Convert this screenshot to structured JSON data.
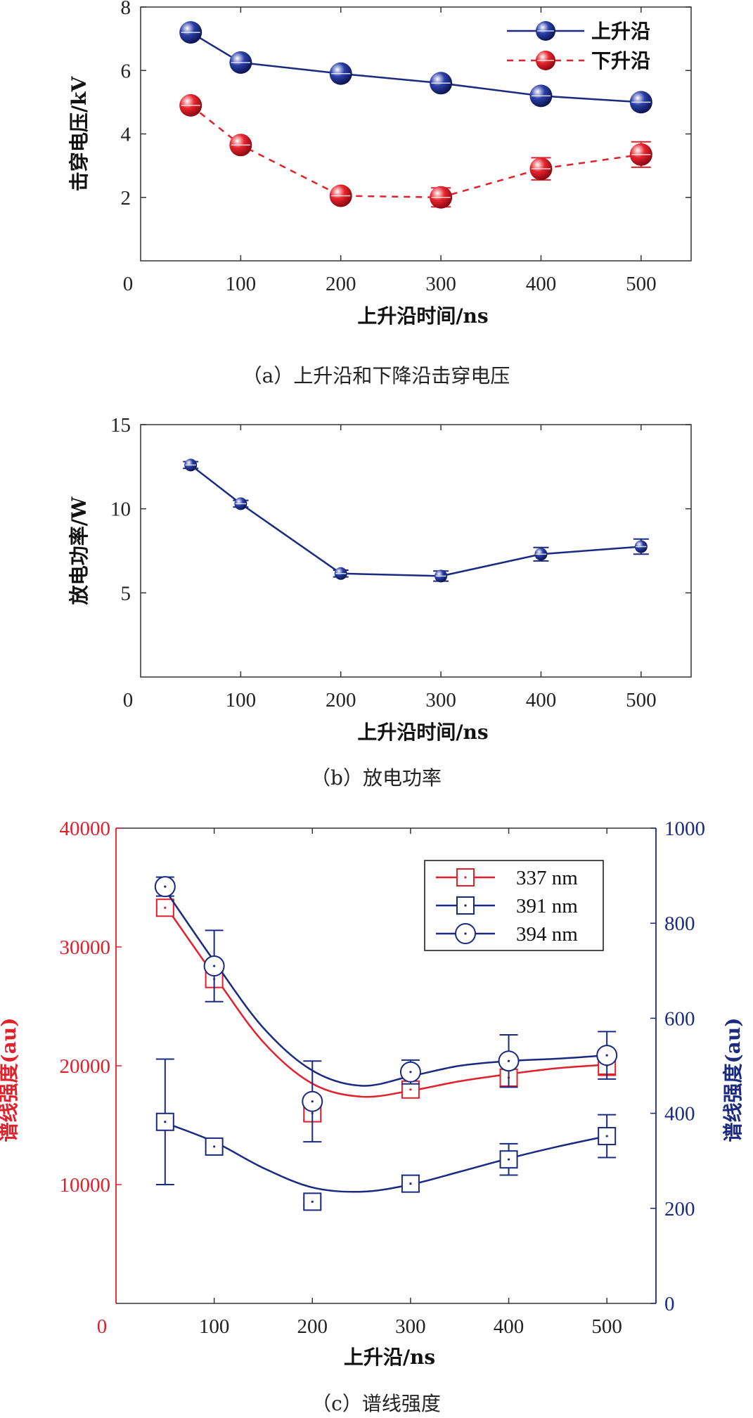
{
  "colors": {
    "blue": "#1a2a80",
    "red": "#e0202a",
    "axis": "#333333"
  },
  "chart_data": [
    {
      "id": "a",
      "type": "line",
      "caption": "（a）上升沿和下降沿击穿电压",
      "xlabel": "上升沿时间/ns",
      "ylabel": "击穿电压/kV",
      "xlim": [
        0,
        550
      ],
      "ylim": [
        0,
        8
      ],
      "xticks": [
        0,
        100,
        200,
        300,
        400,
        500
      ],
      "yticks": [
        2,
        4,
        6,
        8
      ],
      "legend": "top-right",
      "grid": false,
      "series": [
        {
          "name": "上升沿",
          "color": "#1a2a80",
          "dash": false,
          "x": [
            50,
            100,
            200,
            300,
            400,
            500
          ],
          "y": [
            7.2,
            6.25,
            5.9,
            5.6,
            5.2,
            5.0
          ],
          "err": [
            0.15,
            0.15,
            0.15,
            0.15,
            0.15,
            0.1
          ]
        },
        {
          "name": "下升沿",
          "color": "#e0202a",
          "dash": true,
          "x": [
            50,
            100,
            200,
            300,
            400,
            500
          ],
          "y": [
            4.9,
            3.65,
            2.05,
            2.0,
            2.9,
            3.35
          ],
          "err": [
            0.15,
            0.15,
            0.15,
            0.3,
            0.35,
            0.4
          ]
        }
      ]
    },
    {
      "id": "b",
      "type": "line",
      "caption": "（b）放电功率",
      "xlabel": "上升沿时间/ns",
      "ylabel": "放电功率/W",
      "xlim": [
        0,
        550
      ],
      "ylim": [
        0,
        15
      ],
      "xticks": [
        0,
        100,
        200,
        300,
        400,
        500
      ],
      "yticks": [
        5,
        10,
        15
      ],
      "grid": false,
      "series": [
        {
          "color": "#1a2a80",
          "x": [
            50,
            100,
            200,
            300,
            400,
            500
          ],
          "y": [
            12.6,
            10.3,
            6.15,
            6.0,
            7.3,
            7.75
          ],
          "err": [
            0.2,
            0.2,
            0.2,
            0.3,
            0.4,
            0.45
          ]
        }
      ]
    },
    {
      "id": "c",
      "type": "scatter",
      "caption": "（c）谱线强度",
      "xlabel": "上升沿/ns",
      "ylabel_left": "谱线强度(au)",
      "ylabel_right": "谱线强度(au)",
      "xlim": [
        0,
        550
      ],
      "ylim_left": [
        0,
        40000
      ],
      "ylim_right": [
        0,
        1000
      ],
      "xticks": [
        0,
        100,
        200,
        300,
        400,
        500
      ],
      "yticks_left": [
        10000,
        20000,
        30000,
        40000
      ],
      "yticks_right": [
        0,
        200,
        400,
        600,
        800,
        1000
      ],
      "legend": "top-right",
      "grid": false,
      "series": [
        {
          "name": "337 nm",
          "axis": "left",
          "marker": "square",
          "color": "#e0202a",
          "x": [
            50,
            100,
            200,
            300,
            400,
            500
          ],
          "y": [
            33300,
            27300,
            16000,
            18000,
            19000,
            20000
          ],
          "err": [
            600,
            700,
            600,
            600,
            700,
            800
          ],
          "fit": [
            [
              50,
              33500
            ],
            [
              100,
              27600
            ],
            [
              150,
              22000
            ],
            [
              200,
              18500
            ],
            [
              250,
              17400
            ],
            [
              300,
              17900
            ],
            [
              350,
              18700
            ],
            [
              400,
              19300
            ],
            [
              450,
              19800
            ],
            [
              500,
              20100
            ]
          ]
        },
        {
          "name": "391 nm",
          "axis": "right",
          "marker": "square",
          "color": "#1a2a80",
          "x": [
            50,
            100,
            200,
            300,
            400,
            500
          ],
          "y": [
            382,
            330,
            214,
            252,
            303,
            352
          ],
          "err": [
            132,
            10,
            8,
            17,
            33,
            45
          ],
          "fit": [
            [
              50,
              380
            ],
            [
              100,
              340
            ],
            [
              150,
              285
            ],
            [
              200,
              244
            ],
            [
              250,
              235
            ],
            [
              300,
              250
            ],
            [
              350,
              277
            ],
            [
              400,
              305
            ],
            [
              450,
              330
            ],
            [
              500,
              352
            ]
          ]
        },
        {
          "name": "394 nm",
          "axis": "right",
          "marker": "circle",
          "color": "#1a2a80",
          "x": [
            50,
            100,
            200,
            300,
            400,
            500
          ],
          "y": [
            877,
            710,
            425,
            487,
            510,
            522
          ],
          "err": [
            20,
            75,
            85,
            25,
            55,
            50
          ],
          "fit": [
            [
              50,
              870
            ],
            [
              100,
              720
            ],
            [
              150,
              580
            ],
            [
              200,
              490
            ],
            [
              250,
              458
            ],
            [
              300,
              478
            ],
            [
              350,
              500
            ],
            [
              400,
              510
            ],
            [
              450,
              515
            ],
            [
              500,
              522
            ]
          ]
        }
      ]
    }
  ]
}
